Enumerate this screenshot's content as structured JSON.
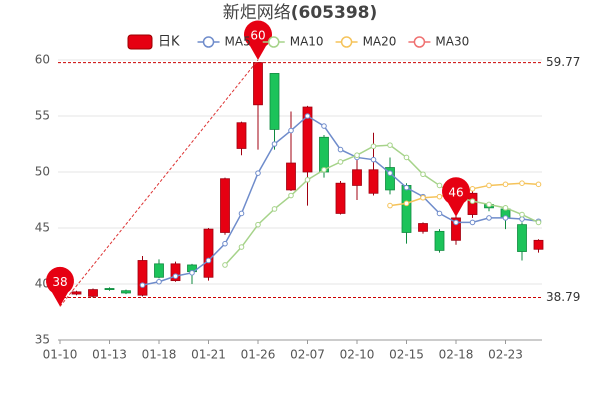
{
  "chart_data": {
    "type": "candlestick",
    "title": "新炬网络",
    "code": "(605398)",
    "categories": [
      "01-10",
      null,
      null,
      "01-13",
      null,
      null,
      "01-18",
      null,
      null,
      "01-21",
      null,
      null,
      "01-26",
      null,
      null,
      "02-07",
      null,
      null,
      "02-10",
      null,
      null,
      "02-15",
      null,
      null,
      "02-18",
      null,
      null,
      "02-23",
      null,
      null
    ],
    "candles": {
      "name": "日K",
      "up_color": "#e60012",
      "down_color": "#1cc35a",
      "open": [
        38.8,
        39.1,
        38.9,
        39.6,
        39.4,
        39.0,
        41.8,
        40.3,
        41.7,
        40.6,
        44.6,
        52.1,
        56.0,
        58.8,
        48.4,
        50.0,
        53.1,
        46.3,
        48.8,
        48.1,
        50.4,
        48.8,
        44.7,
        44.7,
        43.9,
        46.2,
        47.1,
        46.7,
        45.3,
        43.1
      ],
      "high": [
        39.2,
        39.4,
        39.6,
        39.7,
        39.5,
        42.5,
        42.2,
        42.0,
        41.8,
        45.0,
        49.5,
        54.5,
        59.77,
        58.8,
        55.4,
        55.9,
        53.3,
        49.2,
        51.2,
        53.5,
        51.3,
        49.0,
        45.5,
        44.9,
        46.5,
        48.3,
        47.3,
        47.0,
        45.5,
        44.0
      ],
      "low": [
        38.79,
        39.0,
        38.8,
        39.4,
        39.1,
        38.9,
        40.5,
        40.2,
        40.0,
        40.3,
        44.4,
        51.5,
        52.0,
        52.0,
        48.3,
        47.0,
        49.5,
        46.2,
        47.5,
        47.9,
        48.0,
        43.6,
        44.5,
        42.8,
        43.5,
        45.9,
        46.5,
        44.9,
        42.1,
        42.8
      ],
      "close": [
        39.1,
        39.3,
        39.5,
        39.5,
        39.2,
        42.1,
        40.6,
        41.8,
        41.1,
        44.9,
        49.4,
        54.4,
        59.77,
        53.8,
        50.8,
        55.8,
        50.0,
        49.0,
        50.2,
        50.2,
        48.4,
        44.6,
        45.4,
        43.0,
        45.9,
        48.1,
        46.8,
        45.9,
        42.9,
        43.9
      ]
    },
    "series": [
      {
        "name": "MA5",
        "color": "#6f8ccb",
        "values": [
          null,
          null,
          null,
          null,
          null,
          39.9,
          40.2,
          40.7,
          41.0,
          42.1,
          43.6,
          46.3,
          49.9,
          52.5,
          53.7,
          55.0,
          54.1,
          52.0,
          51.3,
          51.1,
          49.9,
          48.6,
          47.8,
          46.3,
          45.5,
          45.5,
          45.9,
          45.9,
          45.8,
          45.6
        ]
      },
      {
        "name": "MA10",
        "color": "#a6d38a",
        "values": [
          null,
          null,
          null,
          null,
          null,
          null,
          null,
          null,
          null,
          null,
          41.7,
          43.3,
          45.3,
          46.7,
          47.9,
          49.3,
          50.2,
          50.9,
          51.5,
          52.3,
          52.4,
          51.3,
          49.8,
          48.8,
          47.8,
          47.4,
          47.1,
          46.8,
          46.2,
          45.5
        ]
      },
      {
        "name": "MA20",
        "color": "#f5c35a",
        "values": [
          null,
          null,
          null,
          null,
          null,
          null,
          null,
          null,
          null,
          null,
          null,
          null,
          null,
          null,
          null,
          null,
          null,
          null,
          null,
          null,
          47.0,
          47.2,
          47.7,
          47.8,
          48.1,
          48.5,
          48.8,
          48.9,
          49.0,
          48.9
        ]
      },
      {
        "name": "MA30",
        "color": "#ef7070",
        "values": [
          null,
          null,
          null,
          null,
          null,
          null,
          null,
          null,
          null,
          null,
          null,
          null,
          null,
          null,
          null,
          null,
          null,
          null,
          null,
          null,
          null,
          null,
          null,
          null,
          null,
          null,
          null,
          null,
          null,
          null
        ]
      }
    ],
    "ylim": [
      35,
      60
    ],
    "yticks": [
      35,
      40,
      45,
      50,
      55,
      60
    ],
    "grid": true,
    "reference_lines": [
      59.77,
      38.79
    ],
    "markers": [
      {
        "label": "60",
        "x": "01-26",
        "value": 60
      },
      {
        "label": "46",
        "x": "02-18",
        "value": 46
      },
      {
        "label": "38",
        "x": "01-10",
        "value": 38
      }
    ]
  }
}
